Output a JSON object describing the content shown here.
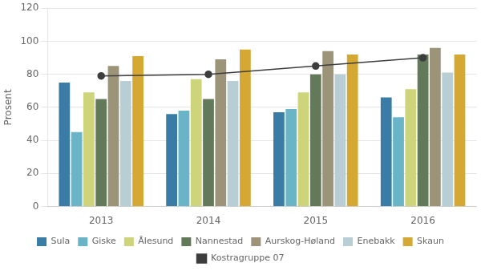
{
  "chart_data": {
    "type": "bar",
    "categories": [
      "2013",
      "2014",
      "2015",
      "2016"
    ],
    "ylabel": "Prosent",
    "ylim": [
      0,
      120
    ],
    "yticks": [
      0,
      20,
      40,
      60,
      80,
      100,
      120
    ],
    "grid": true,
    "legend": "bottom",
    "series": [
      {
        "name": "Sula",
        "color": "#3a7ca5",
        "values": [
          75,
          56,
          57,
          66
        ]
      },
      {
        "name": "Giske",
        "color": "#6ab4c8",
        "values": [
          45,
          58,
          59,
          54
        ]
      },
      {
        "name": "Ålesund",
        "color": "#cdd47a",
        "values": [
          69,
          77,
          69,
          71
        ]
      },
      {
        "name": "Nannestad",
        "color": "#627a5a",
        "values": [
          65,
          65,
          80,
          92
        ]
      },
      {
        "name": "Aurskog-Høland",
        "color": "#9c9478",
        "values": [
          85,
          89,
          94,
          96
        ]
      },
      {
        "name": "Enebakk",
        "color": "#b8ced4",
        "values": [
          76,
          76,
          80,
          81
        ]
      },
      {
        "name": "Skaun",
        "color": "#d4a832",
        "values": [
          91,
          95,
          92,
          92
        ]
      },
      {
        "name": "Kostragruppe 07",
        "type": "line",
        "color": "#3d3d3d",
        "marker": "circle",
        "values": [
          79,
          80,
          85,
          90
        ]
      }
    ]
  }
}
